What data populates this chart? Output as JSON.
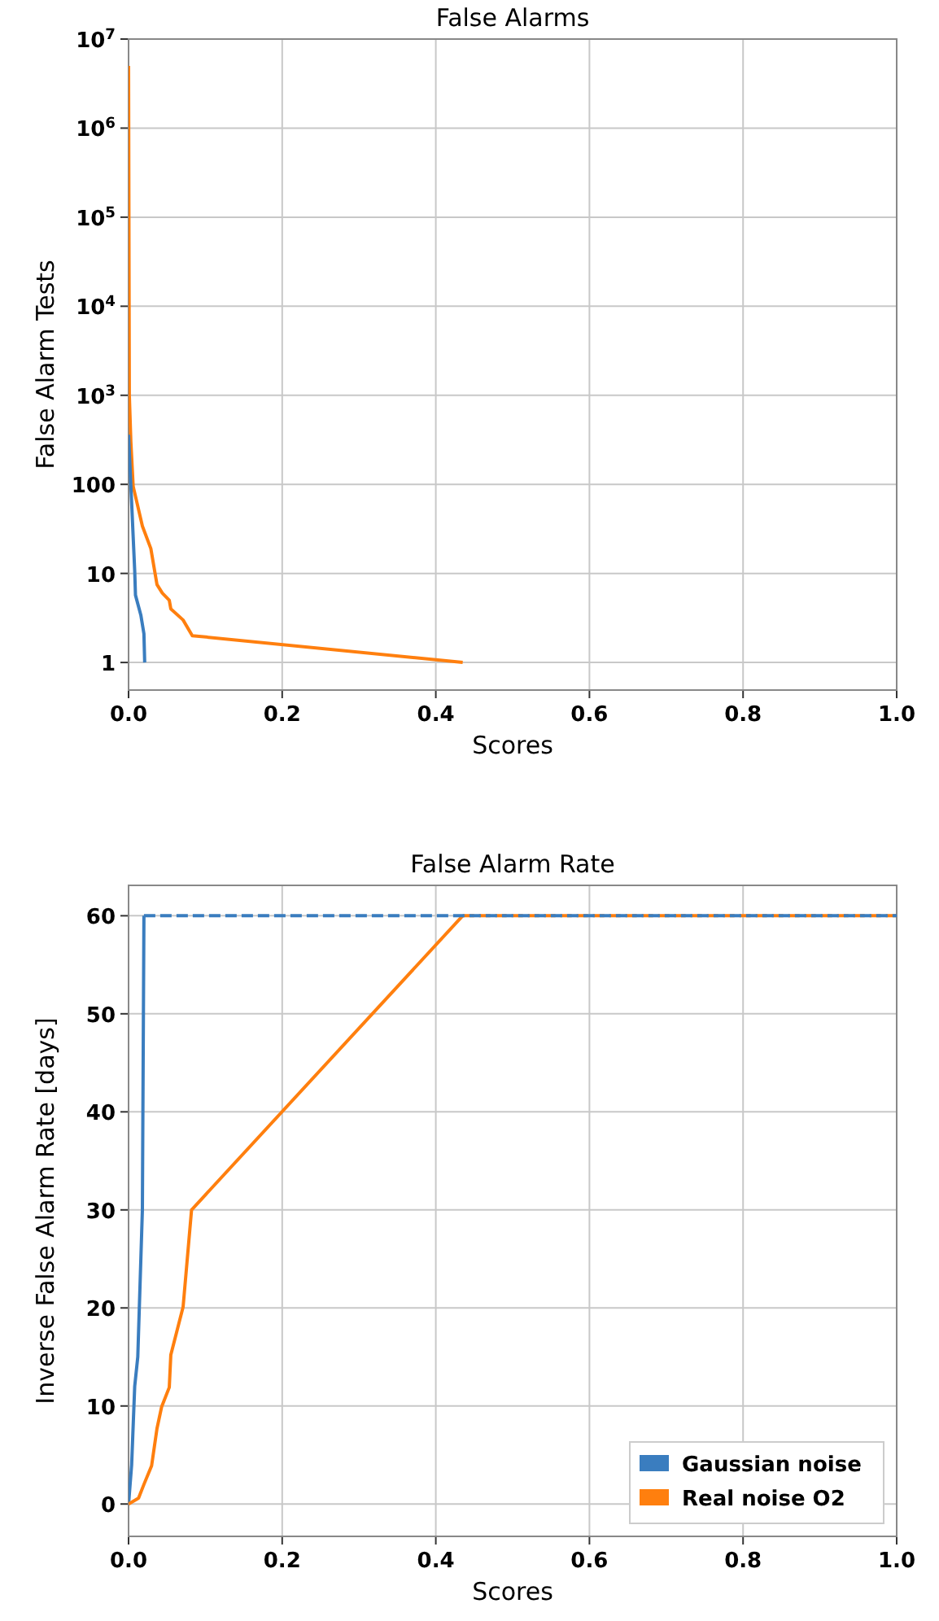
{
  "chart_data": [
    {
      "type": "line",
      "title": "False Alarms",
      "xlabel": "Scores",
      "ylabel": "False Alarm Tests",
      "log": "y",
      "grid": true,
      "xlim": [
        0,
        1
      ],
      "xticks": [
        {
          "value": 0,
          "label": "0.0"
        },
        {
          "value": 0.2,
          "label": "0.2"
        },
        {
          "value": 0.4,
          "label": "0.4"
        },
        {
          "value": 0.6,
          "label": "0.6"
        },
        {
          "value": 0.8,
          "label": "0.8"
        },
        {
          "value": 1,
          "label": "1.0"
        }
      ],
      "ylim": [
        0.49,
        10000000
      ],
      "yticks": [
        1,
        10,
        100,
        {
          "value": 1000,
          "label": "10$^{3}$"
        },
        {
          "value": 10000,
          "label": "10$^{4}$"
        },
        {
          "value": 100000,
          "label": "10$^{5}$"
        },
        {
          "value": 1000000,
          "label": "10$^{6}$"
        },
        {
          "value": 10000000,
          "label": "10$^{7}$"
        }
      ],
      "series": [
        {
          "color": "#ff7f0e",
          "x": [
            0,
            0.001,
            0.003,
            0.006,
            0.018,
            0.029,
            0.037,
            0.044,
            0.053,
            0.055,
            0.071,
            0.083,
            0.435
          ],
          "values": [
            5000000,
            1000,
            300,
            95,
            34,
            19,
            7.5,
            6,
            5,
            4,
            3,
            2,
            1
          ]
        },
        {
          "color": "#3a7dbf",
          "x": [
            0,
            0.008,
            0.009,
            0.016,
            0.02,
            0.021
          ],
          "values": [
            360,
            10.7,
            5.7,
            3.4,
            2.1,
            1
          ]
        }
      ]
    },
    {
      "type": "line",
      "title": "False Alarm Rate",
      "xlabel": "Scores",
      "ylabel": "Inverse False Alarm Rate [days]",
      "grid": true,
      "legend": "bottom right",
      "xlim": [
        0,
        1
      ],
      "xticks": [
        {
          "value": 0,
          "label": "0.0"
        },
        {
          "value": 0.2,
          "label": "0.2"
        },
        {
          "value": 0.4,
          "label": "0.4"
        },
        {
          "value": 0.6,
          "label": "0.6"
        },
        {
          "value": 0.8,
          "label": "0.8"
        },
        {
          "value": 1,
          "label": "1.0"
        }
      ],
      "ylim": [
        -3.3,
        63.1
      ],
      "yticks": [
        0,
        10,
        20,
        30,
        40,
        50,
        60
      ],
      "series": [
        {
          "name": "Gaussian noise",
          "color": "#3a7dbf",
          "x": [
            0,
            0.004,
            0.008,
            0.012,
            0.018,
            0.02
          ],
          "values": [
            0,
            4,
            12,
            15,
            30,
            60
          ]
        },
        {
          "name": "Real noise O2",
          "color": "#ff7f0e",
          "x": [
            0,
            0.013,
            0.02,
            0.03,
            0.037,
            0.043,
            0.053,
            0.055,
            0.071,
            0.082,
            0.435
          ],
          "values": [
            0,
            0.6,
            2,
            3.9,
            7.7,
            9.9,
            11.9,
            15.2,
            20.1,
            30,
            60
          ]
        },
        {
          "color": "#ff7f0e",
          "line_style": "dashed",
          "x": [
            0.435,
            1
          ],
          "values": [
            60,
            60
          ]
        },
        {
          "color": "#3a7dbf",
          "line_style": "dashed",
          "x": [
            0.02,
            1
          ],
          "values": [
            60,
            60
          ]
        }
      ]
    }
  ]
}
